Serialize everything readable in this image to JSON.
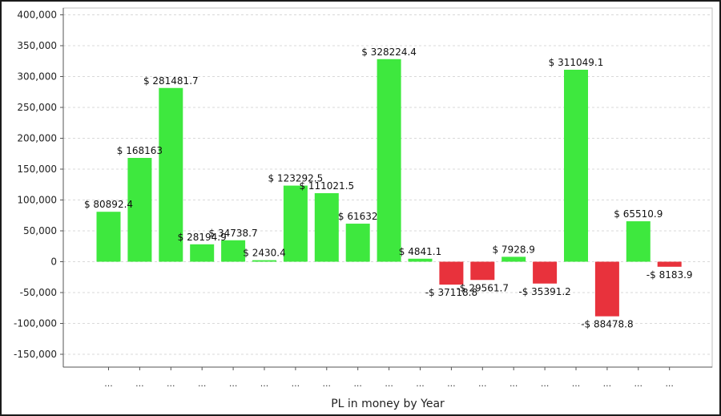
{
  "chart_data": {
    "type": "bar",
    "title": "",
    "xlabel": "PL in money by Year",
    "ylabel": "",
    "ylim": [
      -170000,
      400000
    ],
    "yticks": [
      400000,
      350000,
      300000,
      250000,
      200000,
      150000,
      100000,
      50000,
      0,
      -50000,
      -100000,
      -150000
    ],
    "ytick_labels": [
      "400,000",
      "350,000",
      "300,000",
      "250,000",
      "200,000",
      "150,000",
      "100,000",
      "50,000",
      "0",
      "-50,000",
      "-100,000",
      "-150,000"
    ],
    "grid": true,
    "categories": [
      "...",
      "...",
      "...",
      "...",
      "...",
      "...",
      "...",
      "...",
      "...",
      "...",
      "...",
      "...",
      "...",
      "...",
      "...",
      "...",
      "...",
      "...",
      "..."
    ],
    "values": [
      80892.4,
      168163,
      281481.7,
      28194.9,
      34738.7,
      2430.4,
      123292.5,
      111021.5,
      61632,
      328224.4,
      4841.1,
      -37118.8,
      -29561.7,
      7928.9,
      -35391.2,
      311049.1,
      -88478.8,
      65510.9,
      -8183.9
    ],
    "data_labels": [
      "$ 80892.4",
      "$ 168163",
      "$ 281481.7",
      "$ 28194.9",
      "$ 34738.7",
      "$ 2430.4",
      "$ 123292.5",
      "$ 111021.5",
      "$ 61632",
      "$ 328224.4",
      "$ 4841.1",
      "-$ 37118.8",
      "-$ 29561.7",
      "$ 7928.9",
      "-$ 35391.2",
      "$ 311049.1",
      "-$ 88478.8",
      "$ 65510.9",
      "-$ 8183.9"
    ],
    "colors": {
      "positive": "#3ee83e",
      "negative": "#e8323c",
      "grid": "#d9d9d9",
      "axis": "#555555"
    }
  }
}
